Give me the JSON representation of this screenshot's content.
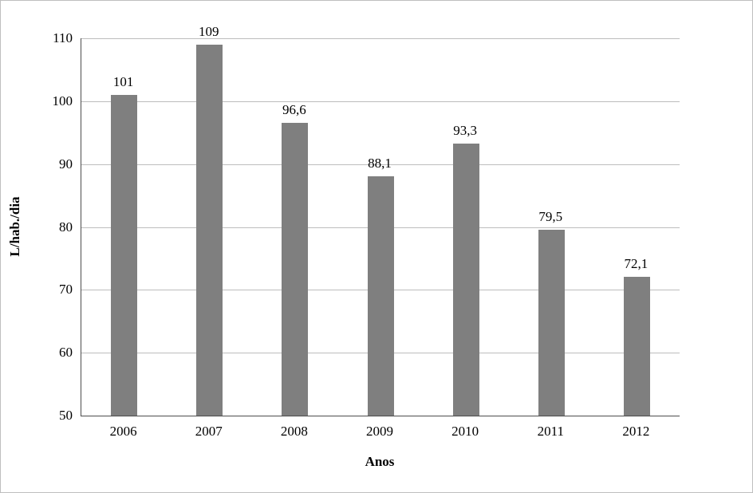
{
  "chart_data": {
    "type": "bar",
    "categories": [
      "2006",
      "2007",
      "2008",
      "2009",
      "2010",
      "2011",
      "2012"
    ],
    "values": [
      101,
      109,
      96.6,
      88.1,
      93.3,
      79.5,
      72.1
    ],
    "value_labels": [
      "101",
      "109",
      "96,6",
      "88,1",
      "93,3",
      "79,5",
      "72,1"
    ],
    "title": "",
    "xlabel": "Anos",
    "ylabel": "L/hab./dia",
    "ylim": [
      50,
      110
    ],
    "ytick_step": 10,
    "ytick_labels": [
      "50",
      "60",
      "70",
      "80",
      "90",
      "100",
      "110"
    ],
    "grid": "horizontal",
    "legend": "none",
    "bar_color": "#7f7f7f",
    "gridline_color": "#bdbdbd",
    "axis_color": "#4d4d4d",
    "frame_border_color": "#bfbfbf",
    "background": "#ffffff"
  }
}
